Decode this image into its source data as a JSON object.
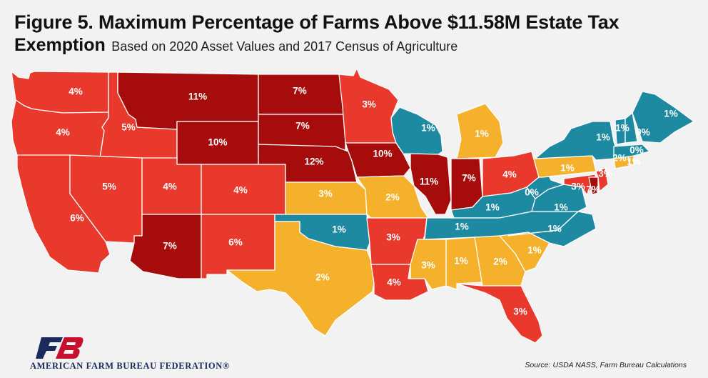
{
  "title": {
    "line1": "Figure 5. Maximum Percentage of Farms Above $11.58M Estate Tax",
    "line2": "Exemption",
    "subtitle": "Based on 2020 Asset Values and 2017 Census of Agriculture"
  },
  "colors": {
    "dark_red": "#a60c0c",
    "red": "#e8392c",
    "gold": "#f5b12c",
    "teal": "#1e8aa2"
  },
  "states": [
    {
      "id": "WA",
      "label": "4%",
      "value": 4,
      "tier": "red"
    },
    {
      "id": "OR",
      "label": "4%",
      "value": 4,
      "tier": "red"
    },
    {
      "id": "CA",
      "label": "6%",
      "value": 6,
      "tier": "red"
    },
    {
      "id": "ID",
      "label": "5%",
      "value": 5,
      "tier": "red"
    },
    {
      "id": "NV",
      "label": "5%",
      "value": 5,
      "tier": "red"
    },
    {
      "id": "MT",
      "label": "11%",
      "value": 11,
      "tier": "dark_red"
    },
    {
      "id": "WY",
      "label": "10%",
      "value": 10,
      "tier": "dark_red"
    },
    {
      "id": "UT",
      "label": "4%",
      "value": 4,
      "tier": "red"
    },
    {
      "id": "CO",
      "label": "4%",
      "value": 4,
      "tier": "red"
    },
    {
      "id": "AZ",
      "label": "7%",
      "value": 7,
      "tier": "dark_red"
    },
    {
      "id": "NM",
      "label": "6%",
      "value": 6,
      "tier": "red"
    },
    {
      "id": "ND",
      "label": "7%",
      "value": 7,
      "tier": "dark_red"
    },
    {
      "id": "SD",
      "label": "7%",
      "value": 7,
      "tier": "dark_red"
    },
    {
      "id": "NE",
      "label": "12%",
      "value": 12,
      "tier": "dark_red"
    },
    {
      "id": "KS",
      "label": "3%",
      "value": 3,
      "tier": "gold"
    },
    {
      "id": "OK",
      "label": "1%",
      "value": 1,
      "tier": "teal"
    },
    {
      "id": "TX",
      "label": "2%",
      "value": 2,
      "tier": "gold"
    },
    {
      "id": "MN",
      "label": "3%",
      "value": 3,
      "tier": "red"
    },
    {
      "id": "IA",
      "label": "10%",
      "value": 10,
      "tier": "dark_red"
    },
    {
      "id": "MO",
      "label": "2%",
      "value": 2,
      "tier": "gold"
    },
    {
      "id": "AR",
      "label": "3%",
      "value": 3,
      "tier": "red"
    },
    {
      "id": "LA",
      "label": "4%",
      "value": 4,
      "tier": "red"
    },
    {
      "id": "WI",
      "label": "1%",
      "value": 1,
      "tier": "teal"
    },
    {
      "id": "IL",
      "label": "11%",
      "value": 11,
      "tier": "dark_red"
    },
    {
      "id": "MI",
      "label": "1%",
      "value": 1,
      "tier": "gold"
    },
    {
      "id": "IN",
      "label": "7%",
      "value": 7,
      "tier": "dark_red"
    },
    {
      "id": "OH",
      "label": "4%",
      "value": 4,
      "tier": "red"
    },
    {
      "id": "KY",
      "label": "1%",
      "value": 1,
      "tier": "teal"
    },
    {
      "id": "TN",
      "label": "1%",
      "value": 1,
      "tier": "teal"
    },
    {
      "id": "MS",
      "label": "3%",
      "value": 3,
      "tier": "gold"
    },
    {
      "id": "AL",
      "label": "1%",
      "value": 1,
      "tier": "gold"
    },
    {
      "id": "GA",
      "label": "2%",
      "value": 2,
      "tier": "gold"
    },
    {
      "id": "FL",
      "label": "3%",
      "value": 3,
      "tier": "red"
    },
    {
      "id": "SC",
      "label": "1%",
      "value": 1,
      "tier": "gold"
    },
    {
      "id": "NC",
      "label": "1%",
      "value": 1,
      "tier": "teal"
    },
    {
      "id": "VA",
      "label": "1%",
      "value": 1,
      "tier": "teal"
    },
    {
      "id": "WV",
      "label": "0%",
      "value": 0,
      "tier": "teal"
    },
    {
      "id": "PA",
      "label": "1%",
      "value": 1,
      "tier": "gold"
    },
    {
      "id": "NY",
      "label": "1%",
      "value": 1,
      "tier": "teal"
    },
    {
      "id": "MD",
      "label": "3%",
      "value": 3,
      "tier": "red"
    },
    {
      "id": "DE",
      "label": "7%",
      "value": 7,
      "tier": "dark_red"
    },
    {
      "id": "NJ",
      "label": "3%",
      "value": 3,
      "tier": "red"
    },
    {
      "id": "CT",
      "label": "2%",
      "value": 2,
      "tier": "gold"
    },
    {
      "id": "RI",
      "label": "1%",
      "value": 1,
      "tier": "gold"
    },
    {
      "id": "MA",
      "label": "0%",
      "value": 0,
      "tier": "teal"
    },
    {
      "id": "VT",
      "label": "1%",
      "value": 1,
      "tier": "teal"
    },
    {
      "id": "NH",
      "label": "0%",
      "value": 0,
      "tier": "teal"
    },
    {
      "id": "ME",
      "label": "1%",
      "value": 1,
      "tier": "teal"
    }
  ],
  "footer": {
    "organization": "AMERICAN FARM BUREAU FEDERATION®",
    "source": "Source: USDA NASS, Farm Bureau Calculations"
  }
}
